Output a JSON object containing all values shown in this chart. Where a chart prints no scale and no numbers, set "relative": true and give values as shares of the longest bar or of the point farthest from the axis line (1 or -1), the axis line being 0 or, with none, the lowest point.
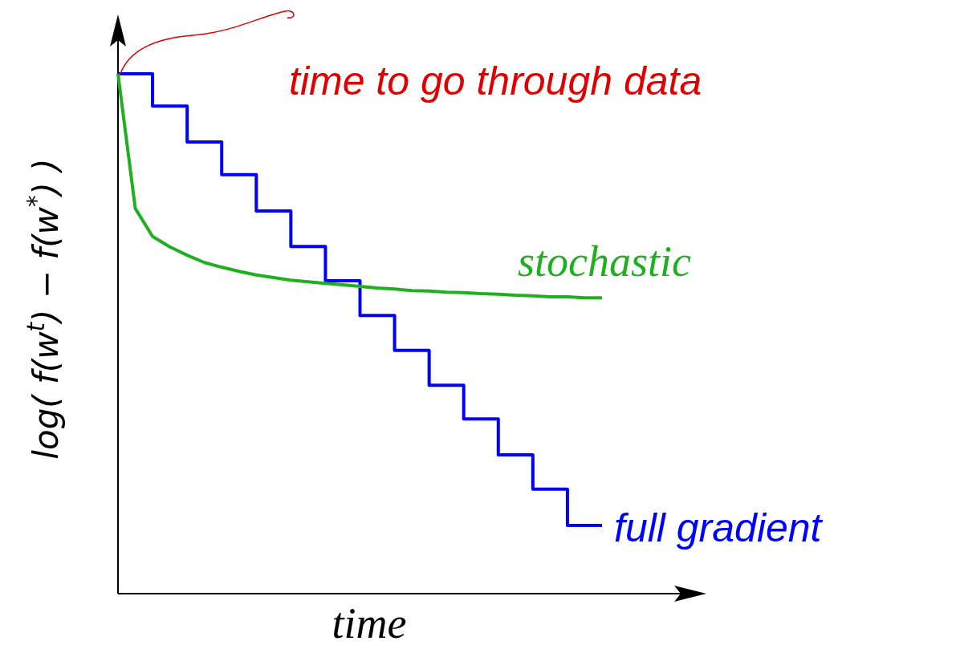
{
  "chart_data": {
    "type": "line",
    "relative": true,
    "xlabel": "time",
    "ylabel": "log( f(w$^{t}$) − f(w$^{*}$) )",
    "annotations": [
      "time to go through data"
    ],
    "legend": false,
    "grid": false,
    "marker": "none",
    "categories": [
      null,
      null,
      null,
      null,
      null,
      null,
      null,
      null,
      null,
      null,
      null,
      null,
      null,
      null,
      null,
      null,
      null,
      null,
      null,
      null,
      null,
      null,
      null,
      null,
      null,
      null,
      null,
      null,
      null
    ],
    "series": [
      {
        "name": "full gradient",
        "type": "step",
        "color": "#0000ff",
        "values": [
          1,
          1,
          0.938,
          0.938,
          0.869,
          0.869,
          0.806,
          0.806,
          0.736,
          0.736,
          0.668,
          0.668,
          0.602,
          0.602,
          0.535,
          0.535,
          0.468,
          0.468,
          0.401,
          0.401,
          0.336,
          0.336,
          0.267,
          0.267,
          0.201,
          0.201,
          0.131,
          0.131,
          0.131
        ]
      },
      {
        "name": "stochastic",
        "type": "line",
        "color": "#1fb01f",
        "values": [
          1,
          0.741,
          0.687,
          0.667,
          0.651,
          0.637,
          0.628,
          0.62,
          0.613,
          0.608,
          0.603,
          0.6,
          0.597,
          0.594,
          0.591,
          0.588,
          0.586,
          0.583,
          0.582,
          0.58,
          0.579,
          0.577,
          0.576,
          0.574,
          0.573,
          0.571,
          0.571,
          0.569,
          0.569
        ]
      }
    ]
  }
}
